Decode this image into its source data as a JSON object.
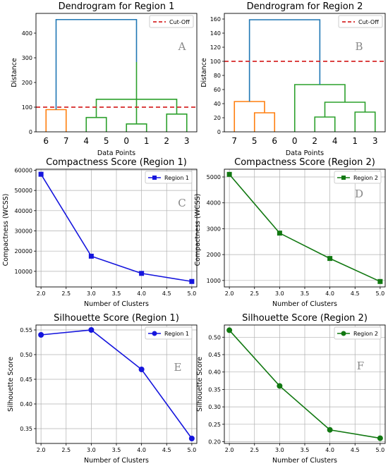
{
  "colors": {
    "tree_blue": "#1f77b4",
    "orange": "#ff7f0e",
    "green": "#2ca02c",
    "cutoff": "#d62728",
    "region1_line": "#1515dd",
    "region2_line": "#117811",
    "grid": "#b0b0b0",
    "panel_letter": "#888888"
  },
  "chart_data": [
    {
      "id": "A",
      "type": "dendrogram",
      "title": "Dendrogram for Region 1",
      "xlabel": "Data Points",
      "ylabel": "Distance",
      "leaf_labels": [
        "6",
        "7",
        "4",
        "5",
        "0",
        "1",
        "2",
        "3"
      ],
      "ylim": [
        0,
        480
      ],
      "yticks": [
        0,
        100,
        200,
        300,
        400
      ],
      "cutoff": 100,
      "legend": [
        "Cut-Off"
      ],
      "panel_letter": "A",
      "links": [
        {
          "left": 0,
          "right": 1,
          "h": 90,
          "color": "orange"
        },
        {
          "left": 2,
          "right": 3,
          "h": 58,
          "color": "green"
        },
        {
          "left": 4,
          "right": 5,
          "h": 32,
          "color": "green"
        },
        {
          "left": 6,
          "right": 7,
          "h": 72,
          "color": "green"
        },
        {
          "left": 9,
          "right": 11,
          "h": 132,
          "color": "green"
        },
        {
          "left": 10,
          "right": 12,
          "h": 283,
          "color": "green"
        },
        {
          "left": 8,
          "right": 13,
          "h": 455,
          "color": "tree_blue"
        }
      ]
    },
    {
      "id": "B",
      "type": "dendrogram",
      "title": "Dendrogram for Region 2",
      "xlabel": "Data Points",
      "ylabel": "Distance",
      "leaf_labels": [
        "7",
        "5",
        "6",
        "0",
        "2",
        "4",
        "1",
        "3"
      ],
      "ylim": [
        0,
        168
      ],
      "yticks": [
        0,
        20,
        40,
        60,
        80,
        100,
        120,
        140,
        160
      ],
      "cutoff": 100,
      "legend": [
        "Cut-Off"
      ],
      "panel_letter": "B",
      "links": [
        {
          "left": 1,
          "right": 2,
          "h": 27,
          "color": "orange"
        },
        {
          "left": 0,
          "right": 8,
          "h": 43,
          "color": "orange"
        },
        {
          "left": 4,
          "right": 5,
          "h": 21,
          "color": "green"
        },
        {
          "left": 6,
          "right": 7,
          "h": 28,
          "color": "green"
        },
        {
          "left": 10,
          "right": 11,
          "h": 42,
          "color": "green"
        },
        {
          "left": 3,
          "right": 12,
          "h": 67,
          "color": "green"
        },
        {
          "left": 9,
          "right": 13,
          "h": 159,
          "color": "tree_blue"
        }
      ]
    },
    {
      "id": "C",
      "type": "line",
      "title": "Compactness Score (Region 1)",
      "xlabel": "Number of Clusters",
      "ylabel": "Compactness (WCSS)",
      "x": [
        2,
        3,
        4,
        5
      ],
      "series": [
        {
          "name": "Region 1",
          "values": [
            58000,
            17500,
            9000,
            5000
          ],
          "color": "region1_line",
          "marker": "square"
        }
      ],
      "xlim": [
        1.9,
        5.1
      ],
      "ylim": [
        2300,
        60500
      ],
      "xticks": [
        "2.0",
        "2.5",
        "3.0",
        "3.5",
        "4.0",
        "4.5",
        "5.0"
      ],
      "yticks": [
        "10000",
        "20000",
        "30000",
        "40000",
        "50000",
        "60000"
      ],
      "grid": true,
      "legend": "top-right",
      "panel_letter": "C"
    },
    {
      "id": "D",
      "type": "line",
      "title": "Compactness Score (Region 2)",
      "xlabel": "Number of Clusters",
      "ylabel": "Compactness (WCSS)",
      "x": [
        2,
        3,
        4,
        5
      ],
      "series": [
        {
          "name": "Region 2",
          "values": [
            5100,
            2830,
            1850,
            960
          ],
          "color": "region2_line",
          "marker": "square"
        }
      ],
      "xlim": [
        1.9,
        5.1
      ],
      "ylim": [
        750,
        5300
      ],
      "xticks": [
        "2.0",
        "2.5",
        "3.0",
        "3.5",
        "4.0",
        "4.5",
        "5.0"
      ],
      "yticks": [
        "1000",
        "2000",
        "3000",
        "4000",
        "5000"
      ],
      "grid": true,
      "legend": "top-right",
      "panel_letter": "D"
    },
    {
      "id": "E",
      "type": "line",
      "title": "Silhouette Score (Region 1)",
      "xlabel": "Number of Clusters",
      "ylabel": "Silhouette Score",
      "x": [
        2,
        3,
        4,
        5
      ],
      "series": [
        {
          "name": "Region 1",
          "values": [
            0.54,
            0.55,
            0.47,
            0.33
          ],
          "color": "region1_line",
          "marker": "circle"
        }
      ],
      "xlim": [
        1.9,
        5.1
      ],
      "ylim": [
        0.32,
        0.56
      ],
      "xticks": [
        "2.0",
        "2.5",
        "3.0",
        "3.5",
        "4.0",
        "4.5",
        "5.0"
      ],
      "yticks": [
        "0.35",
        "0.40",
        "0.45",
        "0.50",
        "0.55"
      ],
      "grid": true,
      "legend": "top-right",
      "panel_letter": "E"
    },
    {
      "id": "F",
      "type": "line",
      "title": "Silhouette Score (Region 2)",
      "xlabel": "Number of Clusters",
      "ylabel": "Silhouette Score",
      "x": [
        2,
        3,
        4,
        5
      ],
      "series": [
        {
          "name": "Region 2",
          "values": [
            0.52,
            0.36,
            0.234,
            0.21
          ],
          "color": "region2_line",
          "marker": "circle"
        }
      ],
      "xlim": [
        1.9,
        5.1
      ],
      "ylim": [
        0.195,
        0.535
      ],
      "xticks": [
        "2.0",
        "2.5",
        "3.0",
        "3.5",
        "4.0",
        "4.5",
        "5.0"
      ],
      "yticks": [
        "0.20",
        "0.25",
        "0.30",
        "0.35",
        "0.40",
        "0.45",
        "0.50"
      ],
      "grid": true,
      "legend": "top-right",
      "panel_letter": "F"
    }
  ]
}
